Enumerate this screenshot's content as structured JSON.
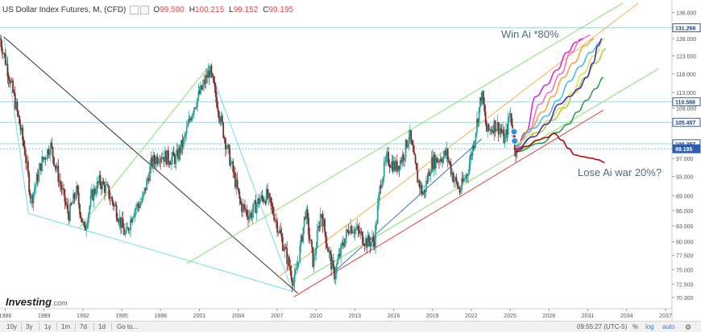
{
  "header": {
    "title": "US Dollar Index Futures, M, (CFD)",
    "ohlc": [
      {
        "label": "O",
        "value": "99.590"
      },
      {
        "label": "H",
        "value": "100.215"
      },
      {
        "label": "L",
        "value": "99.152"
      },
      {
        "label": "C",
        "value": "99.195"
      }
    ]
  },
  "annotations": {
    "win": "Win Ai *80%",
    "lose": "Lose Ai war 20%?"
  },
  "logo": {
    "main": "Investing",
    "suffix": ".com"
  },
  "footer": {
    "ranges": [
      "10y",
      "3y",
      "1y",
      "1m",
      "7d",
      "1d",
      "Go to..."
    ],
    "time": "09:55:27 (UTC-5)",
    "pct": "%",
    "log": "log",
    "auto": "auto"
  },
  "colors": {
    "up": "#26a69a",
    "down": "#7a2e2a",
    "cyan": "#6fe0ee",
    "green": "#86e06a",
    "orange": "#f3b24a",
    "red": "#e04040",
    "black": "#333333",
    "blueline": "#3a78c9",
    "magenta": "#e01ce0",
    "purple": "#4b1fd0",
    "price_badge": "#2a5db0"
  },
  "chart_data": {
    "type": "candlestick",
    "title": "US Dollar Index Futures, M, (CFD)",
    "x_axis": {
      "min": 1985.6,
      "max": 2037.5,
      "ticks": [
        1986,
        1989,
        1992,
        1995,
        1998,
        2001,
        2004,
        2007,
        2010,
        2013,
        2016,
        2019,
        2022,
        2025,
        2028,
        2031,
        2034,
        2037
      ]
    },
    "y_axis": {
      "scale": "log",
      "min": 68.5,
      "max": 140,
      "ticks": [
        136.0,
        128.0,
        123.0,
        118.0,
        113.0,
        109.0,
        105.0,
        101.0,
        97.0,
        93.0,
        89.0,
        86.0,
        83.0,
        80.0,
        77.5,
        75.0,
        72.5,
        70.3
      ],
      "tick_labels": [
        "136.000",
        "128.000",
        "123.000",
        "118.000",
        "113.000",
        "109.000",
        "105.000",
        "101.000",
        "97.000",
        "93.000",
        "89.000",
        "86.000",
        "83.000",
        "80.000",
        "77.500",
        "75.000",
        "72.500",
        "70.300"
      ]
    },
    "price_badges": [
      {
        "value": 131.268,
        "label": "131.268",
        "style": "outline"
      },
      {
        "value": 110.588,
        "label": "110.588",
        "style": "outline"
      },
      {
        "value": 105.457,
        "label": "105.457",
        "style": "outline"
      },
      {
        "value": 100.357,
        "label": "100.357",
        "style": "outline"
      },
      {
        "value": 99.195,
        "label": "99.195",
        "style": "filled"
      }
    ],
    "price_path": [
      [
        1985.6,
        128
      ],
      [
        1986.2,
        119
      ],
      [
        1986.8,
        110
      ],
      [
        1987.5,
        99
      ],
      [
        1988.0,
        88
      ],
      [
        1988.8,
        96
      ],
      [
        1989.5,
        100
      ],
      [
        1990.2,
        92
      ],
      [
        1990.9,
        85
      ],
      [
        1991.5,
        90
      ],
      [
        1992.1,
        82
      ],
      [
        1992.7,
        89
      ],
      [
        1993.3,
        92
      ],
      [
        1993.9,
        90
      ],
      [
        1994.6,
        86
      ],
      [
        1995.3,
        81
      ],
      [
        1995.9,
        86
      ],
      [
        1996.6,
        88
      ],
      [
        1997.3,
        96
      ],
      [
        1998.0,
        98
      ],
      [
        1998.6,
        97
      ],
      [
        1999.2,
        97
      ],
      [
        1999.8,
        101
      ],
      [
        2000.5,
        109
      ],
      [
        2001.2,
        114
      ],
      [
        2001.8,
        119
      ],
      [
        2002.4,
        110
      ],
      [
        2003.0,
        101
      ],
      [
        2003.6,
        94
      ],
      [
        2004.2,
        87
      ],
      [
        2004.9,
        85
      ],
      [
        2005.6,
        88
      ],
      [
        2006.2,
        89
      ],
      [
        2006.8,
        85
      ],
      [
        2007.4,
        80
      ],
      [
        2007.9,
        76
      ],
      [
        2008.3,
        72.5
      ],
      [
        2008.8,
        79
      ],
      [
        2009.2,
        86
      ],
      [
        2009.8,
        76
      ],
      [
        2010.4,
        86
      ],
      [
        2010.9,
        79
      ],
      [
        2011.4,
        74
      ],
      [
        2012.0,
        79
      ],
      [
        2012.6,
        83
      ],
      [
        2013.2,
        82
      ],
      [
        2013.9,
        80
      ],
      [
        2014.5,
        80
      ],
      [
        2015.0,
        92
      ],
      [
        2015.5,
        97
      ],
      [
        2016.2,
        95
      ],
      [
        2016.8,
        98
      ],
      [
        2017.2,
        103
      ],
      [
        2017.8,
        93
      ],
      [
        2018.3,
        89
      ],
      [
        2018.9,
        96
      ],
      [
        2019.5,
        97
      ],
      [
        2020.1,
        98
      ],
      [
        2020.6,
        93
      ],
      [
        2021.1,
        90
      ],
      [
        2021.7,
        94
      ],
      [
        2022.2,
        101
      ],
      [
        2022.8,
        113
      ],
      [
        2023.2,
        103
      ],
      [
        2023.8,
        105
      ],
      [
        2024.2,
        104
      ],
      [
        2024.6,
        101
      ],
      [
        2025.0,
        108
      ],
      [
        2025.4,
        99
      ],
      [
        2025.6,
        99.2
      ]
    ],
    "lines": [
      {
        "name": "",
        "color": "cyan",
        "points": [
          [
            1985.9,
            128.5
          ],
          [
            1987.8,
            85.4
          ]
        ]
      },
      {
        "name": "",
        "color": "cyan",
        "points": [
          [
            1987.8,
            85.4
          ],
          [
            2008.2,
            71.3
          ]
        ]
      },
      {
        "name": "",
        "color": "cyan",
        "points": [
          [
            2001.8,
            119.5
          ],
          [
            2008.2,
            71.3
          ]
        ]
      },
      {
        "name": "",
        "color": "black",
        "points": [
          [
            1985.9,
            128.5
          ],
          [
            2008.6,
            71.0
          ]
        ]
      },
      {
        "name": "",
        "color": "green",
        "points": [
          [
            1991.7,
            82.5
          ],
          [
            2001.6,
            119.5
          ]
        ]
      },
      {
        "name": "",
        "color": "green",
        "points": [
          [
            2000.0,
            76.0
          ],
          [
            2033.7,
            139
          ]
        ]
      },
      {
        "name": "",
        "color": "green",
        "points": [
          [
            2009.0,
            73.2
          ],
          [
            2036.5,
            119.5
          ]
        ]
      },
      {
        "name": "",
        "color": "orange",
        "points": [
          [
            2007.0,
            73.5
          ],
          [
            2034.9,
            139
          ]
        ]
      },
      {
        "name": "",
        "color": "red",
        "points": [
          [
            2008.3,
            70.4
          ],
          [
            2032.2,
            108.5
          ]
        ]
      },
      {
        "name": "",
        "color": "blueline",
        "points": [
          [
            2011.5,
            74.8
          ],
          [
            2022.8,
            101.5
          ]
        ]
      }
    ],
    "projections": {
      "bullish": [
        {
          "color": "magenta",
          "points": [
            [
              2025.4,
              98.5
            ],
            [
              2026.2,
              103
            ],
            [
              2027.0,
              112
            ],
            [
              2027.8,
              115
            ],
            [
              2028.6,
              119
            ],
            [
              2029.4,
              124
            ],
            [
              2030.1,
              127
            ],
            [
              2030.7,
              128
            ]
          ]
        },
        {
          "color": "#ff66c4",
          "points": [
            [
              2025.4,
              99
            ],
            [
              2026.4,
              103
            ],
            [
              2027.3,
              110
            ],
            [
              2028.0,
              113
            ],
            [
              2028.9,
              118
            ],
            [
              2029.7,
              124
            ],
            [
              2030.5,
              128
            ],
            [
              2031.2,
              129
            ]
          ]
        },
        {
          "color": "#f4a23a",
          "points": [
            [
              2025.4,
              99.5
            ],
            [
              2026.6,
              104
            ],
            [
              2027.5,
              108
            ],
            [
              2028.3,
              112
            ],
            [
              2029.1,
              117
            ],
            [
              2029.9,
              121
            ],
            [
              2030.8,
              126
            ],
            [
              2031.5,
              128
            ]
          ]
        },
        {
          "color": "#3fbde0",
          "points": [
            [
              2025.4,
              100
            ],
            [
              2026.8,
              104
            ],
            [
              2027.8,
              107
            ],
            [
              2028.7,
              111
            ],
            [
              2029.6,
              116
            ],
            [
              2030.4,
              120
            ],
            [
              2031.2,
              124
            ],
            [
              2032.0,
              127
            ]
          ]
        },
        {
          "color": "#d8e34a",
          "points": [
            [
              2025.4,
              100.5
            ],
            [
              2027.0,
              103
            ],
            [
              2028.0,
              106
            ],
            [
              2028.9,
              109
            ],
            [
              2029.8,
              113
            ],
            [
              2030.6,
              118
            ],
            [
              2031.5,
              123
            ],
            [
              2032.3,
              128
            ]
          ]
        },
        {
          "color": "#9ed33a",
          "points": [
            [
              2025.4,
              99
            ],
            [
              2027.2,
              103
            ],
            [
              2028.3,
              106
            ],
            [
              2029.2,
              109
            ],
            [
              2030.0,
              113
            ],
            [
              2030.8,
              117
            ],
            [
              2031.6,
              121
            ],
            [
              2032.4,
              125
            ]
          ]
        },
        {
          "color": "#2a9a4e",
          "points": [
            [
              2025.4,
              98.5
            ],
            [
              2027.4,
              100.5
            ],
            [
              2028.6,
              103
            ],
            [
              2029.5,
              105
            ],
            [
              2030.2,
              108
            ],
            [
              2030.9,
              111
            ],
            [
              2031.6,
              114
            ],
            [
              2032.2,
              117
            ]
          ]
        },
        {
          "color": "purple",
          "points": [
            [
              2025.4,
              99
            ],
            [
              2026.8,
              102
            ],
            [
              2027.8,
              105
            ],
            [
              2028.8,
              110
            ],
            [
              2029.6,
              112
            ],
            [
              2030.3,
              114
            ],
            [
              2030.9,
              117
            ],
            [
              2031.4,
              121
            ],
            [
              2031.8,
              126
            ],
            [
              2032.1,
              128
            ]
          ]
        }
      ],
      "bearish": {
        "color": "#b00000",
        "points": [
          [
            2025.4,
            98.5
          ],
          [
            2026.3,
            99.8
          ],
          [
            2027.1,
            101.2
          ],
          [
            2027.8,
            101.8
          ],
          [
            2028.4,
            102.8
          ],
          [
            2029.0,
            101.2
          ],
          [
            2029.5,
            99.3
          ],
          [
            2030.0,
            97.8
          ],
          [
            2030.6,
            97.4
          ],
          [
            2031.2,
            97.1
          ],
          [
            2031.8,
            96.7
          ],
          [
            2032.3,
            96.1
          ]
        ]
      }
    }
  }
}
